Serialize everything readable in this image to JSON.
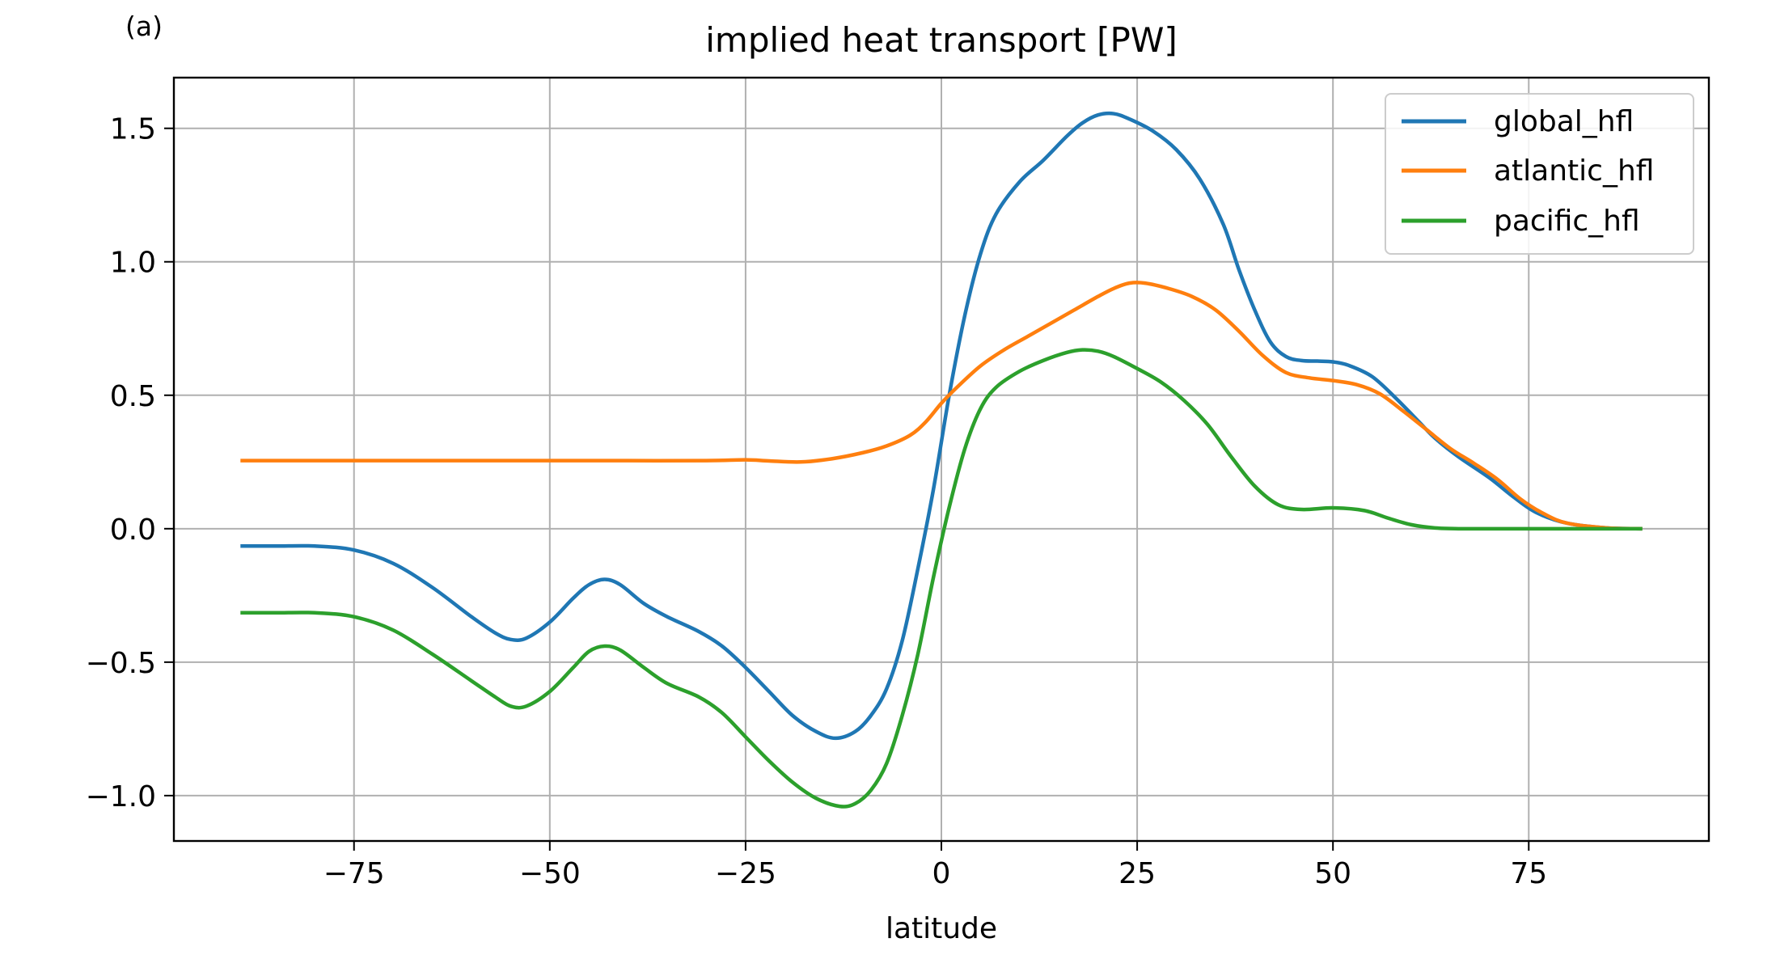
{
  "panel_label": "(a)",
  "chart_data": {
    "type": "line",
    "title": "implied heat transport [PW]",
    "xlabel": "latitude",
    "ylabel": "",
    "xlim": [
      -98,
      98
    ],
    "ylim": [
      -1.17,
      1.69
    ],
    "xticks": [
      -75,
      -50,
      -25,
      0,
      25,
      50,
      75
    ],
    "xtick_labels": [
      "−75",
      "−50",
      "−25",
      "0",
      "25",
      "50",
      "75"
    ],
    "yticks": [
      -1.0,
      -0.5,
      0.0,
      0.5,
      1.0,
      1.5
    ],
    "ytick_labels": [
      "−1.0",
      "−0.5",
      "0.0",
      "0.5",
      "1.0",
      "1.5"
    ],
    "grid": true,
    "legend_position": "top-right",
    "series": [
      {
        "name": "global_hfl",
        "color": "#1f77b4",
        "points": [
          [
            -89.5,
            -0.065
          ],
          [
            -85,
            -0.065
          ],
          [
            -80,
            -0.065
          ],
          [
            -75,
            -0.08
          ],
          [
            -70,
            -0.13
          ],
          [
            -65,
            -0.22
          ],
          [
            -60,
            -0.33
          ],
          [
            -57,
            -0.39
          ],
          [
            -55,
            -0.415
          ],
          [
            -53,
            -0.41
          ],
          [
            -50,
            -0.35
          ],
          [
            -47,
            -0.26
          ],
          [
            -45,
            -0.21
          ],
          [
            -43,
            -0.19
          ],
          [
            -41,
            -0.21
          ],
          [
            -38,
            -0.28
          ],
          [
            -35,
            -0.33
          ],
          [
            -31,
            -0.385
          ],
          [
            -28,
            -0.44
          ],
          [
            -25,
            -0.52
          ],
          [
            -22,
            -0.61
          ],
          [
            -19,
            -0.7
          ],
          [
            -16,
            -0.76
          ],
          [
            -13.5,
            -0.785
          ],
          [
            -11,
            -0.76
          ],
          [
            -9,
            -0.7
          ],
          [
            -7,
            -0.6
          ],
          [
            -5,
            -0.42
          ],
          [
            -3,
            -0.15
          ],
          [
            -1,
            0.15
          ],
          [
            1,
            0.5
          ],
          [
            3,
            0.8
          ],
          [
            5,
            1.03
          ],
          [
            7,
            1.18
          ],
          [
            10,
            1.3
          ],
          [
            13,
            1.38
          ],
          [
            16,
            1.47
          ],
          [
            18,
            1.52
          ],
          [
            20,
            1.55
          ],
          [
            22,
            1.555
          ],
          [
            24,
            1.535
          ],
          [
            27,
            1.49
          ],
          [
            30,
            1.42
          ],
          [
            33,
            1.31
          ],
          [
            36,
            1.14
          ],
          [
            38,
            0.97
          ],
          [
            40,
            0.82
          ],
          [
            42,
            0.7
          ],
          [
            44,
            0.645
          ],
          [
            46,
            0.63
          ],
          [
            48,
            0.628
          ],
          [
            50,
            0.625
          ],
          [
            52,
            0.612
          ],
          [
            55,
            0.57
          ],
          [
            58,
            0.49
          ],
          [
            61,
            0.4
          ],
          [
            63,
            0.34
          ],
          [
            66,
            0.27
          ],
          [
            70,
            0.19
          ],
          [
            73,
            0.12
          ],
          [
            76,
            0.06
          ],
          [
            80,
            0.02
          ],
          [
            85,
            0.003
          ],
          [
            89.5,
            0.0
          ]
        ]
      },
      {
        "name": "atlantic_hfl",
        "color": "#ff7f0e",
        "points": [
          [
            -89.5,
            0.255
          ],
          [
            -80,
            0.255
          ],
          [
            -70,
            0.255
          ],
          [
            -60,
            0.255
          ],
          [
            -50,
            0.255
          ],
          [
            -40,
            0.255
          ],
          [
            -30,
            0.255
          ],
          [
            -25,
            0.258
          ],
          [
            -22,
            0.254
          ],
          [
            -18,
            0.25
          ],
          [
            -14,
            0.262
          ],
          [
            -10,
            0.285
          ],
          [
            -7,
            0.31
          ],
          [
            -4,
            0.35
          ],
          [
            -2,
            0.4
          ],
          [
            0,
            0.47
          ],
          [
            2,
            0.53
          ],
          [
            5,
            0.61
          ],
          [
            8,
            0.67
          ],
          [
            11,
            0.72
          ],
          [
            14,
            0.77
          ],
          [
            17,
            0.82
          ],
          [
            20,
            0.87
          ],
          [
            22,
            0.9
          ],
          [
            24,
            0.92
          ],
          [
            26,
            0.92
          ],
          [
            29,
            0.9
          ],
          [
            32,
            0.87
          ],
          [
            35,
            0.82
          ],
          [
            38,
            0.74
          ],
          [
            41,
            0.65
          ],
          [
            44,
            0.585
          ],
          [
            47,
            0.565
          ],
          [
            50,
            0.555
          ],
          [
            53,
            0.54
          ],
          [
            56,
            0.505
          ],
          [
            59,
            0.44
          ],
          [
            62,
            0.37
          ],
          [
            65,
            0.3
          ],
          [
            68,
            0.245
          ],
          [
            71,
            0.185
          ],
          [
            74,
            0.11
          ],
          [
            77,
            0.055
          ],
          [
            80,
            0.02
          ],
          [
            85,
            0.003
          ],
          [
            89.5,
            0.0
          ]
        ]
      },
      {
        "name": "pacific_hfl",
        "color": "#2ca02c",
        "points": [
          [
            -89.5,
            -0.315
          ],
          [
            -85,
            -0.315
          ],
          [
            -80,
            -0.315
          ],
          [
            -75,
            -0.33
          ],
          [
            -70,
            -0.38
          ],
          [
            -65,
            -0.47
          ],
          [
            -60,
            -0.57
          ],
          [
            -57,
            -0.63
          ],
          [
            -55,
            -0.665
          ],
          [
            -53,
            -0.665
          ],
          [
            -50,
            -0.61
          ],
          [
            -47,
            -0.52
          ],
          [
            -45,
            -0.46
          ],
          [
            -43,
            -0.44
          ],
          [
            -41,
            -0.455
          ],
          [
            -38,
            -0.52
          ],
          [
            -35,
            -0.58
          ],
          [
            -31,
            -0.63
          ],
          [
            -28,
            -0.69
          ],
          [
            -25,
            -0.78
          ],
          [
            -22,
            -0.87
          ],
          [
            -19,
            -0.95
          ],
          [
            -16,
            -1.01
          ],
          [
            -13,
            -1.04
          ],
          [
            -11,
            -1.03
          ],
          [
            -9,
            -0.98
          ],
          [
            -7,
            -0.88
          ],
          [
            -5,
            -0.7
          ],
          [
            -3,
            -0.47
          ],
          [
            -1,
            -0.18
          ],
          [
            1,
            0.08
          ],
          [
            3,
            0.3
          ],
          [
            5,
            0.45
          ],
          [
            7,
            0.53
          ],
          [
            10,
            0.59
          ],
          [
            13,
            0.63
          ],
          [
            16,
            0.66
          ],
          [
            18,
            0.67
          ],
          [
            20,
            0.665
          ],
          [
            22,
            0.645
          ],
          [
            25,
            0.6
          ],
          [
            28,
            0.55
          ],
          [
            31,
            0.48
          ],
          [
            34,
            0.39
          ],
          [
            37,
            0.27
          ],
          [
            40,
            0.16
          ],
          [
            43,
            0.09
          ],
          [
            46,
            0.072
          ],
          [
            50,
            0.078
          ],
          [
            54,
            0.068
          ],
          [
            57,
            0.04
          ],
          [
            60,
            0.015
          ],
          [
            63,
            0.003
          ],
          [
            66,
            0.0
          ],
          [
            70,
            0.0
          ],
          [
            80,
            0.0
          ],
          [
            89.5,
            0.0
          ]
        ]
      }
    ]
  }
}
